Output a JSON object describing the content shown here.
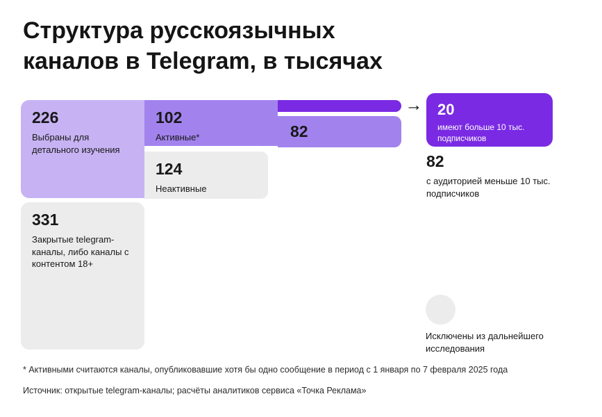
{
  "ui": {
    "title_line1": "Структура русскоязычных",
    "title_line2": "каналов в Telegram, в тысячах",
    "arrow_glyph": "→"
  },
  "chart_data": {
    "type": "flow",
    "title": "Структура русскоязычных каналов в Telegram, в тысячах",
    "units": "тысячи каналов",
    "nodes": [
      {
        "id": "selected",
        "value": 226,
        "label": "Выбраны для детального изучения",
        "color": "#c7b3f4"
      },
      {
        "id": "closed",
        "value": 331,
        "label": "Закрытые telegram-каналы, либо каналы с контентом 18+",
        "color": "#ececec"
      },
      {
        "id": "active",
        "value": 102,
        "label": "Активные*",
        "parent": "selected",
        "color": "#a283ee"
      },
      {
        "id": "inactive",
        "value": 124,
        "label": "Неактивные",
        "parent": "selected",
        "color": "#ececec"
      },
      {
        "id": "over_10k",
        "value": 20,
        "label": "имеют больше 10 тыс. подписчиков",
        "parent": "active",
        "color": "#7a2ae3"
      },
      {
        "id": "under_10k",
        "value": 82,
        "label": "с аудиторией меньше 10 тыс. подписчиков",
        "parent": "active",
        "color": "#a283ee"
      }
    ],
    "links": [
      {
        "source": "selected",
        "target": "active",
        "value": 102
      },
      {
        "source": "selected",
        "target": "inactive",
        "value": 124
      },
      {
        "source": "active",
        "target": "over_10k",
        "value": 20
      },
      {
        "source": "active",
        "target": "under_10k",
        "value": 82
      }
    ],
    "annotations": [
      "Исключены из дальнейшего исследования"
    ],
    "footnote": "* Активными считаются каналы, опубликовавшие хотя бы одно сообщение в период с 1 января по 7 февраля 2025 года",
    "source": "Источник: открытые telegram-каналы; расчёты аналитиков сервиса «Точка Реклама»"
  },
  "colors": {
    "light_purple": "#c7b3f4",
    "medium_purple": "#a283ee",
    "dark_purple": "#7a2ae3",
    "gray_block": "#ececec",
    "text": "#181818",
    "background": "#ffffff"
  }
}
